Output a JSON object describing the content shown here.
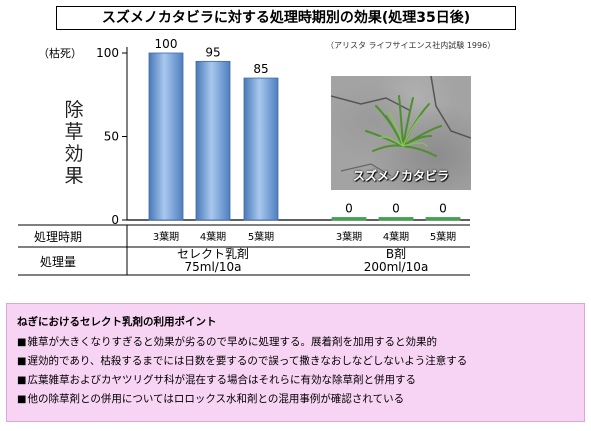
{
  "title": "スズメノカタビラに対する処理時期別の効果(処理35日後)",
  "source": "（アリスタ ライフサイエンス社内試験 1996）",
  "photo_label": "スズメノカタビラ",
  "chart_data": {
    "type": "bar",
    "ylabel": "除草効果",
    "yunit": "（枯死）",
    "ylim": [
      0,
      100
    ],
    "yticks": [
      0,
      50,
      100
    ],
    "row_labels": {
      "timing": "処理時期",
      "dose": "処理量"
    },
    "groups": [
      {
        "name": "セレクト乳剤",
        "dose": "75ml/10a",
        "categories": [
          "3葉期",
          "4葉期",
          "5葉期"
        ],
        "values": [
          100,
          95,
          85
        ],
        "color": "#6a96cf"
      },
      {
        "name": "B剤",
        "dose": "200ml/10a",
        "categories": [
          "3葉期",
          "4葉期",
          "5葉期"
        ],
        "values": [
          0,
          0,
          0
        ],
        "color": "#3fa34d"
      }
    ]
  },
  "info": {
    "title": "ねぎにおけるセレクト乳剤の利用ポイント",
    "items": [
      "雑草が大きくなりすぎると効果が劣るので早めに処理する。展着剤を加用すると効果的",
      "遅効的であり、枯殺するまでには日数を要するので誤って撒きなおしなどしないよう注意する",
      "広葉雑草およびカヤツリグサ科が混在する場合はそれらに有効な除草剤と併用する",
      "他の除草剤との併用についてはロロックス水和剤との混用事例が確認されている"
    ]
  }
}
